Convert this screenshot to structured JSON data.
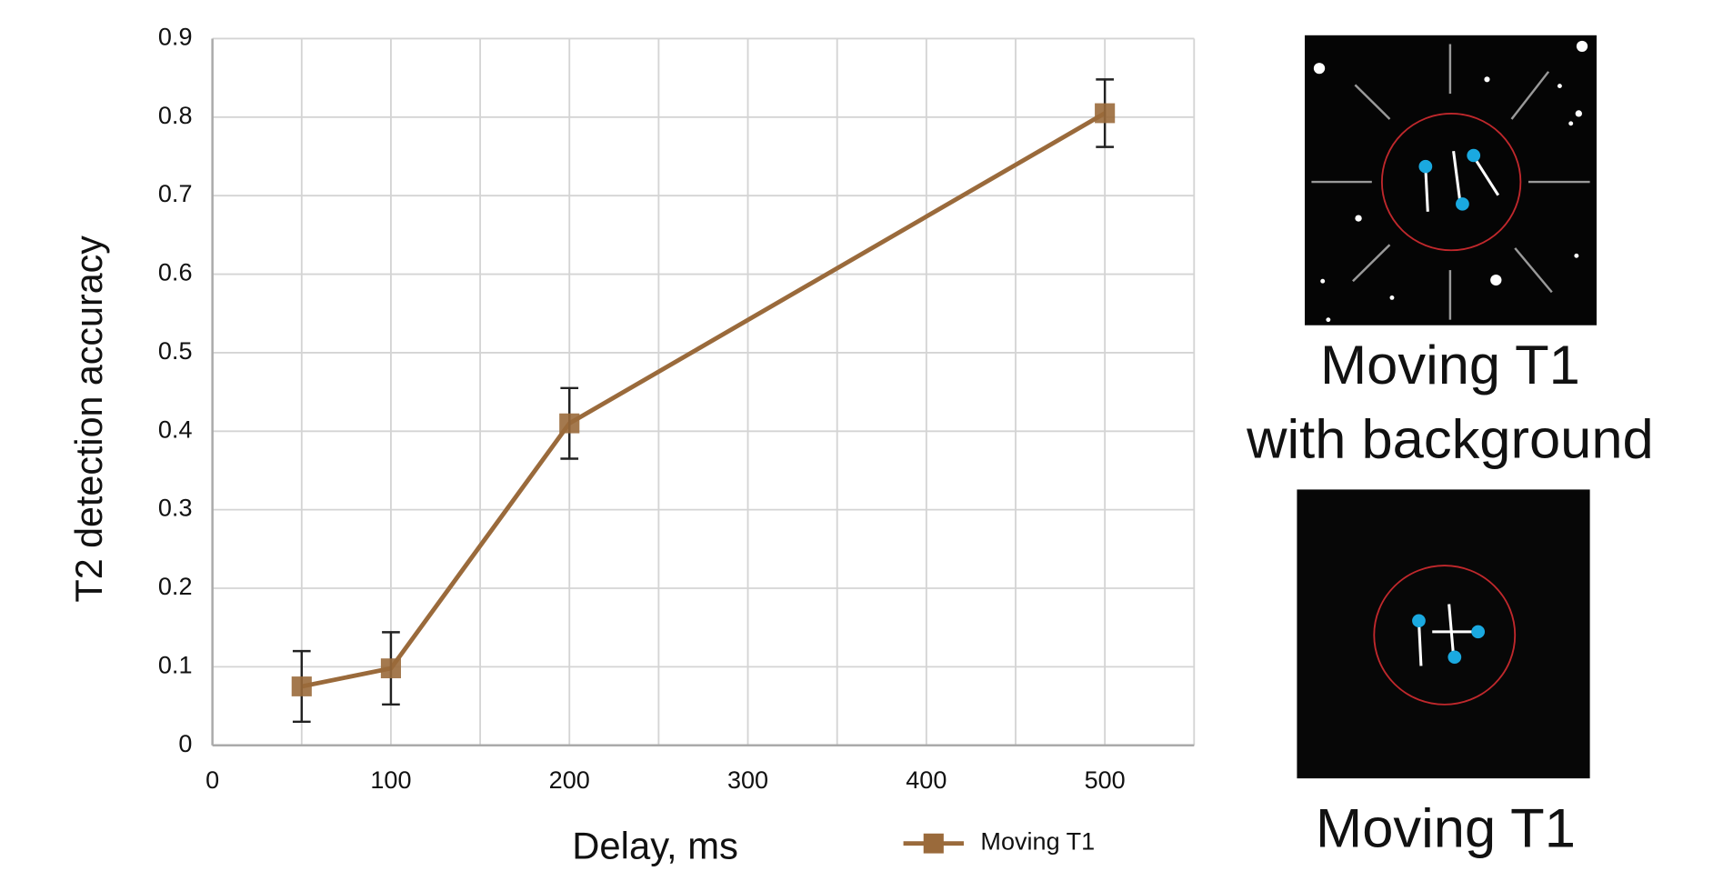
{
  "chart_data": {
    "type": "line",
    "x_label": "Delay, ms",
    "y_label": "T2 detection accuracy",
    "x": [
      50,
      100,
      200,
      500
    ],
    "series": [
      {
        "name": "Moving T1",
        "color": "#9a6a3b",
        "values": [
          0.075,
          0.098,
          0.41,
          0.805
        ],
        "errors": [
          0.045,
          0.046,
          0.045,
          0.043
        ]
      }
    ],
    "xlim": [
      0,
      550
    ],
    "xticks": [
      0,
      100,
      200,
      300,
      400,
      500
    ],
    "x_minor_grid": [
      50,
      150,
      250,
      350,
      450,
      550
    ],
    "ylim": [
      0,
      0.9
    ],
    "yticks": [
      0,
      0.1,
      0.2,
      0.3,
      0.4,
      0.5,
      0.6,
      0.7,
      0.8,
      0.9
    ],
    "grid": true,
    "legend": "bottom-right"
  },
  "panels": [
    {
      "caption": [
        "Moving T1",
        "with background"
      ]
    },
    {
      "caption": [
        "Moving T1"
      ]
    }
  ]
}
